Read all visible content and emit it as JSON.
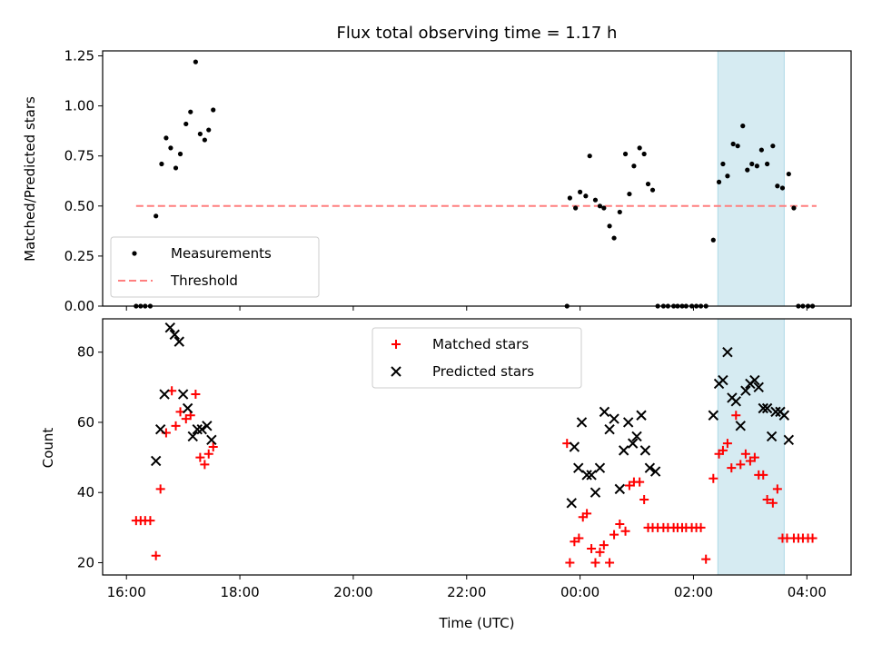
{
  "chart_data": {
    "type": "scatter",
    "title": "Flux total observing time = 1.17 h",
    "xlabel": "Time (UTC)",
    "x_unit": "hours since 16:00 UTC",
    "xlim": [
      -0.42,
      12.78
    ],
    "x_ticks": [
      {
        "value": 0,
        "label": "16:00"
      },
      {
        "value": 2,
        "label": "18:00"
      },
      {
        "value": 4,
        "label": "20:00"
      },
      {
        "value": 6,
        "label": "22:00"
      },
      {
        "value": 8,
        "label": "00:00"
      },
      {
        "value": 10,
        "label": "02:00"
      },
      {
        "value": 12,
        "label": "04:00"
      }
    ],
    "highlight_span": {
      "x0": 10.43,
      "x1": 11.6,
      "color": "#add8e6"
    },
    "panels": [
      {
        "name": "ratio",
        "ylabel": "Matched/Predicted stars",
        "ylim": [
          0,
          1.275
        ],
        "y_ticks": [
          "0.00",
          "0.25",
          "0.50",
          "0.75",
          "1.00",
          "1.25"
        ],
        "legend": {
          "position": "lower-left",
          "entries": [
            "Measurements",
            "Threshold"
          ]
        },
        "threshold": {
          "name": "Threshold",
          "y": 0.5,
          "x_range": [
            0.17,
            12.17
          ],
          "color": "#ff7f7f"
        },
        "series": [
          {
            "name": "Measurements",
            "marker": "dot",
            "color": "#000000",
            "x": [
              0.17,
              0.25,
              0.33,
              0.42,
              0.52,
              0.62,
              0.7,
              0.78,
              0.87,
              0.95,
              1.05,
              1.13,
              1.22,
              1.3,
              1.38,
              1.45,
              1.53,
              7.77,
              7.82,
              7.92,
              8.0,
              8.1,
              8.17,
              8.27,
              8.35,
              8.42,
              8.52,
              8.6,
              8.7,
              8.8,
              8.87,
              8.95,
              9.05,
              9.13,
              9.2,
              9.28,
              9.37,
              9.47,
              9.55,
              9.65,
              9.72,
              9.8,
              9.87,
              9.97,
              10.05,
              10.13,
              10.22,
              10.35,
              10.45,
              10.52,
              10.6,
              10.7,
              10.78,
              10.87,
              10.95,
              11.03,
              11.12,
              11.2,
              11.3,
              11.4,
              11.48,
              11.57,
              11.68,
              11.77,
              11.85,
              11.93,
              12.02,
              12.1
            ],
            "y": [
              0.0,
              0.0,
              0.0,
              0.0,
              0.45,
              0.71,
              0.84,
              0.79,
              0.69,
              0.76,
              0.91,
              0.97,
              1.22,
              0.86,
              0.83,
              0.88,
              0.98,
              0.0,
              0.54,
              0.49,
              0.57,
              0.55,
              0.75,
              0.53,
              0.5,
              0.49,
              0.4,
              0.34,
              0.47,
              0.76,
              0.56,
              0.7,
              0.79,
              0.76,
              0.61,
              0.58,
              0.0,
              0.0,
              0.0,
              0.0,
              0.0,
              0.0,
              0.0,
              0.0,
              0.0,
              0.0,
              0.0,
              0.33,
              0.62,
              0.71,
              0.65,
              0.81,
              0.8,
              0.9,
              0.68,
              0.71,
              0.7,
              0.78,
              0.71,
              0.8,
              0.6,
              0.59,
              0.66,
              0.49,
              0.0,
              0.0,
              0.0,
              0.0
            ]
          }
        ]
      },
      {
        "name": "counts",
        "ylabel": "Count",
        "ylim": [
          16.5,
          89.5
        ],
        "y_ticks": [
          "20",
          "40",
          "60",
          "80"
        ],
        "legend": {
          "position": "upper-center",
          "entries": [
            "Matched stars",
            "Predicted stars"
          ]
        },
        "series": [
          {
            "name": "Matched stars",
            "marker": "plus",
            "color": "#ff0000",
            "x": [
              0.17,
              0.25,
              0.33,
              0.42,
              0.52,
              0.6,
              0.7,
              0.8,
              0.87,
              0.95,
              1.05,
              1.13,
              1.22,
              1.3,
              1.38,
              1.45,
              1.53,
              7.77,
              7.82,
              7.9,
              7.98,
              8.05,
              8.12,
              8.2,
              8.27,
              8.35,
              8.42,
              8.52,
              8.6,
              8.7,
              8.8,
              8.87,
              8.95,
              9.05,
              9.13,
              9.2,
              9.28,
              9.37,
              9.47,
              9.55,
              9.65,
              9.72,
              9.8,
              9.87,
              9.97,
              10.05,
              10.13,
              10.22,
              10.35,
              10.45,
              10.52,
              10.6,
              10.67,
              10.75,
              10.83,
              10.92,
              11.0,
              11.08,
              11.15,
              11.23,
              11.3,
              11.4,
              11.48,
              11.57,
              11.65,
              11.77,
              11.85,
              11.93,
              12.02,
              12.1
            ],
            "y": [
              32,
              32,
              32,
              32,
              22,
              41,
              57,
              69,
              59,
              63,
              61,
              62,
              68,
              50,
              48,
              51,
              53,
              54,
              20,
              26,
              27,
              33,
              34,
              24,
              20,
              23,
              25,
              20,
              28,
              31,
              29,
              42,
              43,
              43,
              38,
              30,
              30,
              30,
              30,
              30,
              30,
              30,
              30,
              30,
              30,
              30,
              30,
              21,
              44,
              51,
              52,
              54,
              47,
              62,
              48,
              51,
              49,
              50,
              45,
              45,
              38,
              37,
              41,
              27,
              27,
              27,
              27,
              27,
              27,
              27
            ]
          },
          {
            "name": "Predicted stars",
            "marker": "x",
            "color": "#000000",
            "x": [
              0.52,
              0.6,
              0.67,
              0.77,
              0.85,
              0.93,
              1.0,
              1.08,
              1.17,
              1.25,
              1.33,
              1.42,
              1.5,
              7.85,
              7.9,
              7.97,
              8.03,
              8.12,
              8.2,
              8.27,
              8.35,
              8.43,
              8.52,
              8.6,
              8.7,
              8.77,
              8.85,
              8.93,
              9.0,
              9.08,
              9.15,
              9.23,
              9.33,
              10.35,
              10.45,
              10.52,
              10.6,
              10.68,
              10.75,
              10.83,
              10.92,
              11.0,
              11.08,
              11.15,
              11.23,
              11.3,
              11.38,
              11.45,
              11.53,
              11.6,
              11.68
            ],
            "y": [
              49,
              58,
              68,
              87,
              85,
              83,
              68,
              64,
              56,
              58,
              58,
              59,
              55,
              37,
              53,
              47,
              60,
              45,
              45,
              40,
              47,
              63,
              58,
              61,
              41,
              52,
              60,
              54,
              56,
              62,
              52,
              47,
              46,
              62,
              71,
              72,
              80,
              67,
              66,
              59,
              69,
              71,
              72,
              70,
              64,
              64,
              56,
              63,
              63,
              62,
              55
            ]
          }
        ]
      }
    ]
  }
}
